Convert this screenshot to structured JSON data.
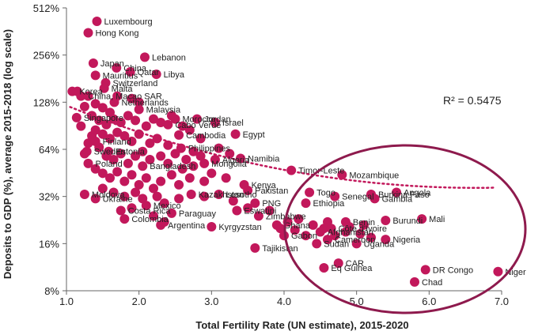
{
  "colors": {
    "point": "#c2185b",
    "trend": "#c2185b",
    "ellipse": "#8e1a4d",
    "axis": "#666666",
    "text": "#222222"
  },
  "chart_data": {
    "type": "scatter",
    "title": "",
    "xlabel": "Total Fertility Rate (UN estimate), 2015-2020",
    "ylabel": "Deposits to GDP (%), average 2015-2018 (log scale)",
    "xlim": [
      1.0,
      7.0
    ],
    "ylim": [
      8,
      512
    ],
    "y_scale": "log2",
    "x_ticks": [
      1.0,
      2.0,
      3.0,
      4.0,
      5.0,
      6.0,
      7.0
    ],
    "x_tick_labels": [
      "1.0",
      "2.0",
      "3.0",
      "4.0",
      "5.0",
      "6.0",
      "7.0"
    ],
    "y_ticks": [
      8,
      16,
      32,
      64,
      128,
      256,
      512
    ],
    "y_tick_labels": [
      "8%",
      "16%",
      "32%",
      "64%",
      "128%",
      "256%",
      "512%"
    ],
    "annotation": "R² = 0.5475",
    "trendline": {
      "x1": 1.05,
      "x2": 6.9,
      "note": "dotted log-linear fit"
    },
    "highlight": "ellipse around high-fertility countries (TFR > 3.9)",
    "labeled_points": [
      {
        "label": "Luxembourg",
        "x": 1.42,
        "y": 420
      },
      {
        "label": "Hong Kong",
        "x": 1.3,
        "y": 355
      },
      {
        "label": "Lebanon",
        "x": 2.08,
        "y": 248
      },
      {
        "label": "Japan",
        "x": 1.37,
        "y": 227
      },
      {
        "label": "China",
        "x": 1.69,
        "y": 212
      },
      {
        "label": "Libya",
        "x": 2.24,
        "y": 193
      },
      {
        "label": "Qatar",
        "x": 1.88,
        "y": 200
      },
      {
        "label": "Mauritius",
        "x": 1.4,
        "y": 190
      },
      {
        "label": "Switzerland",
        "x": 1.54,
        "y": 170
      },
      {
        "label": "Malta",
        "x": 1.52,
        "y": 157
      },
      {
        "label": "Korea",
        "x": 1.08,
        "y": 150
      },
      {
        "label": "China, Macao SAR",
        "x": 1.2,
        "y": 140
      },
      {
        "label": "Netherlands",
        "x": 1.66,
        "y": 128
      },
      {
        "label": "Israel",
        "x": 3.05,
        "y": 95
      },
      {
        "label": "Malaysia",
        "x": 2.0,
        "y": 115
      },
      {
        "label": "Singapore",
        "x": 1.14,
        "y": 102
      },
      {
        "label": "Morocco",
        "x": 2.5,
        "y": 100
      },
      {
        "label": "Jordan",
        "x": 2.8,
        "y": 100
      },
      {
        "label": "Cabo Verde",
        "x": 2.4,
        "y": 92
      },
      {
        "label": "Egypt",
        "x": 3.33,
        "y": 80
      },
      {
        "label": "Cambodia",
        "x": 2.55,
        "y": 79
      },
      {
        "label": "Finland",
        "x": 1.4,
        "y": 72
      },
      {
        "label": "Philippines",
        "x": 2.58,
        "y": 65
      },
      {
        "label": "Namibia",
        "x": 3.4,
        "y": 56
      },
      {
        "label": "Algeria",
        "x": 3.05,
        "y": 55
      },
      {
        "label": "Sweden",
        "x": 1.28,
        "y": 62
      },
      {
        "label": "Estonia",
        "x": 1.58,
        "y": 62
      },
      {
        "label": "Mongolia",
        "x": 2.9,
        "y": 52
      },
      {
        "label": "Poland",
        "x": 1.3,
        "y": 52
      },
      {
        "label": "Bangladesh",
        "x": 2.05,
        "y": 50
      },
      {
        "label": "Timor-Leste",
        "x": 4.1,
        "y": 47
      },
      {
        "label": "Mozambique",
        "x": 4.8,
        "y": 44
      },
      {
        "label": "Kenya",
        "x": 3.45,
        "y": 38
      },
      {
        "label": "Pakistan",
        "x": 3.5,
        "y": 35
      },
      {
        "label": "Kazakhstan",
        "x": 2.72,
        "y": 33
      },
      {
        "label": "Lesotho",
        "x": 3.1,
        "y": 33
      },
      {
        "label": "Moldova",
        "x": 1.25,
        "y": 33
      },
      {
        "label": "Ukraine",
        "x": 1.4,
        "y": 31
      },
      {
        "label": "Togo",
        "x": 4.35,
        "y": 34
      },
      {
        "label": "Angola",
        "x": 5.55,
        "y": 34
      },
      {
        "label": "Burkina Faso",
        "x": 5.2,
        "y": 33
      },
      {
        "label": "Senegal",
        "x": 4.7,
        "y": 32
      },
      {
        "label": "Gambia",
        "x": 5.25,
        "y": 31
      },
      {
        "label": "Ethiopia",
        "x": 4.3,
        "y": 29
      },
      {
        "label": "PNG",
        "x": 3.6,
        "y": 29
      },
      {
        "label": "Mexico",
        "x": 2.1,
        "y": 28
      },
      {
        "label": "Costa Rica",
        "x": 1.75,
        "y": 26
      },
      {
        "label": "Paraguay",
        "x": 2.45,
        "y": 25
      },
      {
        "label": "Eswatini",
        "x": 3.35,
        "y": 26
      },
      {
        "label": "Zimbabwe",
        "x": 3.65,
        "y": 24
      },
      {
        "label": "Colombia",
        "x": 1.8,
        "y": 23
      },
      {
        "label": "Mali",
        "x": 5.9,
        "y": 23
      },
      {
        "label": "Burundi",
        "x": 5.4,
        "y": 22.5
      },
      {
        "label": "Benin",
        "x": 4.85,
        "y": 22
      },
      {
        "label": "Argentina",
        "x": 2.3,
        "y": 21
      },
      {
        "label": "Kyrgyzstan",
        "x": 3.0,
        "y": 20.5
      },
      {
        "label": "Ghana",
        "x": 3.9,
        "y": 21
      },
      {
        "label": "Gabon",
        "x": 4.0,
        "y": 18
      },
      {
        "label": "Côte d'Ivoire",
        "x": 4.65,
        "y": 20
      },
      {
        "label": "Afghanistan",
        "x": 4.5,
        "y": 19
      },
      {
        "label": "Nigeria",
        "x": 5.4,
        "y": 17
      },
      {
        "label": "Cameroon",
        "x": 4.6,
        "y": 17
      },
      {
        "label": "Sudan",
        "x": 4.45,
        "y": 16
      },
      {
        "label": "Uganda",
        "x": 5.0,
        "y": 16
      },
      {
        "label": "Tajikistan",
        "x": 3.6,
        "y": 15
      },
      {
        "label": "CAR",
        "x": 4.75,
        "y": 12
      },
      {
        "label": "Eq Guinea",
        "x": 4.55,
        "y": 11.2
      },
      {
        "label": "DR Congo",
        "x": 5.95,
        "y": 10.9
      },
      {
        "label": "Niger",
        "x": 6.95,
        "y": 10.6
      },
      {
        "label": "Chad",
        "x": 5.8,
        "y": 9.1
      }
    ],
    "unlabeled_points": [
      {
        "x": 1.15,
        "y": 150
      },
      {
        "x": 1.3,
        "y": 140
      },
      {
        "x": 1.25,
        "y": 120
      },
      {
        "x": 1.4,
        "y": 125
      },
      {
        "x": 1.5,
        "y": 118
      },
      {
        "x": 1.6,
        "y": 110
      },
      {
        "x": 1.35,
        "y": 105
      },
      {
        "x": 1.45,
        "y": 98
      },
      {
        "x": 1.55,
        "y": 92
      },
      {
        "x": 1.65,
        "y": 100
      },
      {
        "x": 1.75,
        "y": 95
      },
      {
        "x": 1.85,
        "y": 105
      },
      {
        "x": 1.95,
        "y": 98
      },
      {
        "x": 2.1,
        "y": 90
      },
      {
        "x": 2.2,
        "y": 100
      },
      {
        "x": 2.3,
        "y": 95
      },
      {
        "x": 1.4,
        "y": 85
      },
      {
        "x": 1.5,
        "y": 80
      },
      {
        "x": 1.6,
        "y": 75
      },
      {
        "x": 1.7,
        "y": 82
      },
      {
        "x": 1.8,
        "y": 78
      },
      {
        "x": 1.9,
        "y": 72
      },
      {
        "x": 2.0,
        "y": 80
      },
      {
        "x": 2.15,
        "y": 70
      },
      {
        "x": 2.25,
        "y": 75
      },
      {
        "x": 2.4,
        "y": 68
      },
      {
        "x": 2.6,
        "y": 90
      },
      {
        "x": 2.7,
        "y": 85
      },
      {
        "x": 1.3,
        "y": 70
      },
      {
        "x": 1.45,
        "y": 66
      },
      {
        "x": 1.55,
        "y": 58
      },
      {
        "x": 1.65,
        "y": 55
      },
      {
        "x": 1.75,
        "y": 60
      },
      {
        "x": 1.85,
        "y": 52
      },
      {
        "x": 1.95,
        "y": 58
      },
      {
        "x": 2.05,
        "y": 62
      },
      {
        "x": 2.15,
        "y": 55
      },
      {
        "x": 2.3,
        "y": 58
      },
      {
        "x": 2.4,
        "y": 52
      },
      {
        "x": 2.5,
        "y": 60
      },
      {
        "x": 2.65,
        "y": 55
      },
      {
        "x": 2.75,
        "y": 62
      },
      {
        "x": 2.85,
        "y": 58
      },
      {
        "x": 1.4,
        "y": 48
      },
      {
        "x": 1.5,
        "y": 45
      },
      {
        "x": 1.6,
        "y": 42
      },
      {
        "x": 1.7,
        "y": 46
      },
      {
        "x": 1.8,
        "y": 40
      },
      {
        "x": 1.9,
        "y": 44
      },
      {
        "x": 2.0,
        "y": 38
      },
      {
        "x": 2.1,
        "y": 42
      },
      {
        "x": 2.2,
        "y": 36
      },
      {
        "x": 2.3,
        "y": 40
      },
      {
        "x": 2.45,
        "y": 44
      },
      {
        "x": 2.55,
        "y": 38
      },
      {
        "x": 2.7,
        "y": 42
      },
      {
        "x": 2.9,
        "y": 40
      },
      {
        "x": 3.0,
        "y": 45
      },
      {
        "x": 3.2,
        "y": 42
      },
      {
        "x": 1.5,
        "y": 36
      },
      {
        "x": 1.65,
        "y": 34
      },
      {
        "x": 1.8,
        "y": 32
      },
      {
        "x": 1.95,
        "y": 34
      },
      {
        "x": 2.05,
        "y": 31
      },
      {
        "x": 2.25,
        "y": 32
      },
      {
        "x": 2.35,
        "y": 29
      },
      {
        "x": 2.55,
        "y": 31
      },
      {
        "x": 2.9,
        "y": 32
      },
      {
        "x": 3.3,
        "y": 30
      },
      {
        "x": 3.5,
        "y": 27
      },
      {
        "x": 3.8,
        "y": 26
      },
      {
        "x": 1.9,
        "y": 27
      },
      {
        "x": 2.2,
        "y": 24
      },
      {
        "x": 2.35,
        "y": 22
      },
      {
        "x": 4.05,
        "y": 22
      },
      {
        "x": 4.2,
        "y": 23
      },
      {
        "x": 4.4,
        "y": 21
      },
      {
        "x": 4.55,
        "y": 20
      },
      {
        "x": 4.7,
        "y": 18
      },
      {
        "x": 4.85,
        "y": 19
      },
      {
        "x": 5.05,
        "y": 18.5
      },
      {
        "x": 5.2,
        "y": 17.5
      },
      {
        "x": 4.3,
        "y": 18
      },
      {
        "x": 4.15,
        "y": 19.5
      },
      {
        "x": 3.95,
        "y": 20
      },
      {
        "x": 4.9,
        "y": 20.5
      },
      {
        "x": 5.1,
        "y": 21
      },
      {
        "x": 4.6,
        "y": 22
      },
      {
        "x": 1.2,
        "y": 90
      },
      {
        "x": 1.35,
        "y": 78
      },
      {
        "x": 1.25,
        "y": 60
      },
      {
        "x": 2.0,
        "y": 128
      },
      {
        "x": 1.7,
        "y": 140
      },
      {
        "x": 1.9,
        "y": 135
      },
      {
        "x": 2.45,
        "y": 105
      },
      {
        "x": 2.85,
        "y": 75
      },
      {
        "x": 3.1,
        "y": 65
      },
      {
        "x": 3.25,
        "y": 60
      },
      {
        "x": 2.6,
        "y": 48
      },
      {
        "x": 2.75,
        "y": 50
      }
    ]
  }
}
